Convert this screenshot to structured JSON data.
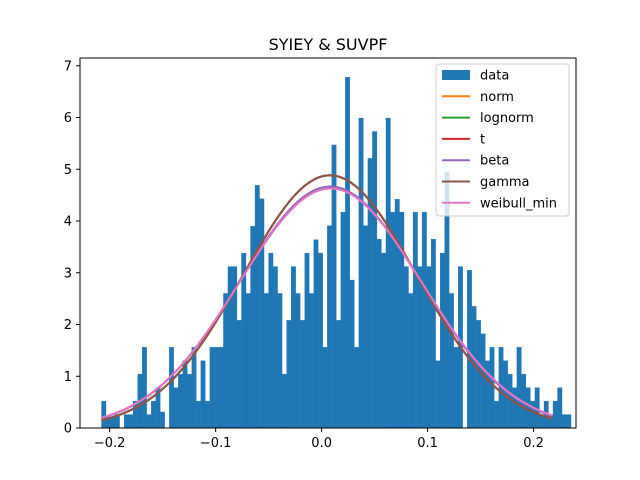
{
  "chart_data": {
    "type": "bar",
    "title": "SYIEY & SUVPF",
    "xlabel": "",
    "ylabel": "",
    "xlim": [
      -0.228,
      0.24
    ],
    "ylim": [
      0,
      7.15
    ],
    "grid": false,
    "legend_position": "top-right",
    "x_ticks": [
      -0.2,
      -0.1,
      0.0,
      0.1,
      0.2
    ],
    "x_tick_labels": [
      "−0.2",
      "−0.1",
      "0.0",
      "0.1",
      "0.2"
    ],
    "y_ticks": [
      0,
      1,
      2,
      3,
      4,
      5,
      6,
      7
    ],
    "y_tick_labels": [
      "0",
      "1",
      "2",
      "3",
      "4",
      "5",
      "6",
      "7"
    ],
    "histogram": {
      "name": "data",
      "color": "#1f77b4",
      "bin_start": -0.2077,
      "bin_width": 0.00426,
      "heights": [
        0.52,
        0.21,
        0.21,
        0.26,
        0.0,
        0.26,
        0.26,
        0.52,
        1.04,
        1.56,
        0.26,
        0.52,
        0.78,
        0.31,
        0.0,
        1.56,
        0.78,
        1.04,
        1.3,
        1.04,
        1.56,
        0.52,
        1.3,
        0.52,
        1.56,
        1.56,
        1.56,
        2.6,
        3.12,
        3.12,
        2.08,
        3.38,
        2.6,
        3.9,
        4.69,
        4.43,
        2.6,
        3.38,
        3.12,
        2.6,
        1.04,
        2.08,
        3.12,
        2.6,
        2.08,
        3.38,
        2.6,
        3.64,
        3.38,
        1.56,
        3.91,
        5.47,
        2.08,
        4.17,
        6.78,
        2.86,
        1.56,
        5.99,
        3.91,
        5.21,
        5.73,
        3.65,
        3.38,
        5.99,
        4.17,
        4.42,
        4.17,
        3.12,
        2.6,
        4.17,
        3.12,
        4.17,
        3.12,
        3.65,
        1.3,
        3.38,
        4.95,
        2.6,
        1.56,
        3.12,
        0.0,
        3.05,
        2.35,
        2.08,
        1.82,
        1.3,
        1.56,
        0.52,
        1.56,
        1.3,
        1.04,
        0.78,
        1.56,
        1.04,
        0.78,
        0.52,
        0.78,
        0.26,
        0.52,
        0.26,
        0.52,
        0.78,
        0.26,
        0.26
      ],
      "fill": "#1f77b4"
    },
    "series": [
      {
        "name": "norm",
        "color": "#ff7f0e",
        "mean": 0.0078,
        "sd": 0.0817
      },
      {
        "name": "lognorm",
        "color": "#2ca02c",
        "mean": 0.0078,
        "sd": 0.0817
      },
      {
        "name": "t",
        "color": "#d62728",
        "mean": 0.0078,
        "sd": 0.0817
      },
      {
        "name": "beta",
        "color": "#9467bd",
        "mean": 0.0082,
        "sd": 0.0855
      },
      {
        "name": "gamma",
        "color": "#8c564b",
        "mean": 0.0078,
        "sd": 0.0817
      },
      {
        "name": "weibull_min",
        "color": "#e377c2",
        "mean": 0.0085,
        "sd": 0.0862
      }
    ],
    "legend": [
      "data",
      "norm",
      "lognorm",
      "t",
      "beta",
      "gamma",
      "weibull_min"
    ]
  }
}
